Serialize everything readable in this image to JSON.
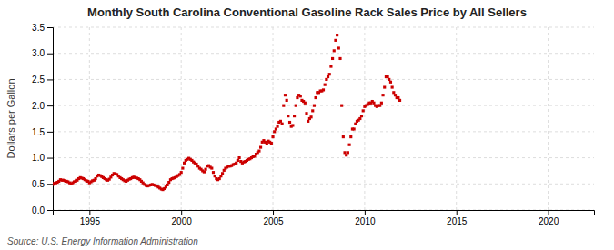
{
  "chart_data": {
    "type": "scatter",
    "title": "Monthly South Carolina Conventional Gasoline Rack Sales Price by All Sellers",
    "y_label": "Dollars per Gallon",
    "annotation": "Source: U.S. Energy Information Administration",
    "color": "#cc0000",
    "marker": "square",
    "grid": true,
    "xlim": [
      1993.0,
      2022.5
    ],
    "ylim": [
      0.0,
      3.5
    ],
    "xticks": [
      1995,
      2000,
      2005,
      2010,
      2015,
      2020
    ],
    "yticks": [
      {
        "value": 0,
        "label": "0.0"
      },
      0.5,
      {
        "value": 1,
        "label": "1.0"
      },
      1.5,
      {
        "value": 2,
        "label": "2.0"
      },
      2.5,
      {
        "value": 3,
        "label": "3.0"
      },
      3.5
    ],
    "x": [
      1993.0,
      1993.083,
      1993.167,
      1993.25,
      1993.333,
      1993.417,
      1993.5,
      1993.583,
      1993.667,
      1993.75,
      1993.833,
      1993.917,
      1994.0,
      1994.083,
      1994.167,
      1994.25,
      1994.333,
      1994.417,
      1994.5,
      1994.583,
      1994.667,
      1994.75,
      1994.833,
      1994.917,
      1995.0,
      1995.083,
      1995.167,
      1995.25,
      1995.333,
      1995.417,
      1995.5,
      1995.583,
      1995.667,
      1995.75,
      1995.833,
      1995.917,
      1996.0,
      1996.083,
      1996.167,
      1996.25,
      1996.333,
      1996.417,
      1996.5,
      1996.583,
      1996.667,
      1996.75,
      1996.833,
      1996.917,
      1997.0,
      1997.083,
      1997.167,
      1997.25,
      1997.333,
      1997.417,
      1997.5,
      1997.583,
      1997.667,
      1997.75,
      1997.833,
      1997.917,
      1998.0,
      1998.083,
      1998.167,
      1998.25,
      1998.333,
      1998.417,
      1998.5,
      1998.583,
      1998.667,
      1998.75,
      1998.833,
      1998.917,
      1999.0,
      1999.083,
      1999.167,
      1999.25,
      1999.333,
      1999.417,
      1999.5,
      1999.583,
      1999.667,
      1999.75,
      1999.833,
      1999.917,
      2000.0,
      2000.083,
      2000.167,
      2000.25,
      2000.333,
      2000.417,
      2000.5,
      2000.583,
      2000.667,
      2000.75,
      2000.833,
      2000.917,
      2001.0,
      2001.083,
      2001.167,
      2001.25,
      2001.333,
      2001.417,
      2001.5,
      2001.583,
      2001.667,
      2001.75,
      2001.833,
      2001.917,
      2002.0,
      2002.083,
      2002.167,
      2002.25,
      2002.333,
      2002.417,
      2002.5,
      2002.583,
      2002.667,
      2002.75,
      2002.833,
      2002.917,
      2003.0,
      2003.083,
      2003.167,
      2003.25,
      2003.333,
      2003.417,
      2003.5,
      2003.583,
      2003.667,
      2003.75,
      2003.833,
      2003.917,
      2004.0,
      2004.083,
      2004.167,
      2004.25,
      2004.333,
      2004.417,
      2004.5,
      2004.583,
      2004.667,
      2004.75,
      2004.833,
      2004.917,
      2005.0,
      2005.083,
      2005.167,
      2005.25,
      2005.333,
      2005.417,
      2005.5,
      2005.583,
      2005.667,
      2005.75,
      2005.833,
      2005.917,
      2006.0,
      2006.083,
      2006.167,
      2006.25,
      2006.333,
      2006.417,
      2006.5,
      2006.583,
      2006.667,
      2006.75,
      2006.833,
      2006.917,
      2007.0,
      2007.083,
      2007.167,
      2007.25,
      2007.333,
      2007.417,
      2007.5,
      2007.583,
      2007.667,
      2007.75,
      2007.833,
      2007.917,
      2008.0,
      2008.083,
      2008.167,
      2008.25,
      2008.333,
      2008.417,
      2008.5,
      2008.583,
      2008.667,
      2008.75,
      2008.833,
      2008.917,
      2009.0,
      2009.083,
      2009.167,
      2009.25,
      2009.333,
      2009.417,
      2009.5,
      2009.583,
      2009.667,
      2009.75,
      2009.833,
      2009.917,
      2010.0,
      2010.083,
      2010.167,
      2010.25,
      2010.333,
      2010.417,
      2010.5,
      2010.583,
      2010.667,
      2010.75,
      2010.833,
      2010.917,
      2011.0,
      2011.083,
      2011.167,
      2011.25,
      2011.333,
      2011.417,
      2011.5,
      2011.583,
      2011.667,
      2011.75,
      2011.833,
      2011.917
    ],
    "values": [
      0.49,
      0.51,
      0.52,
      0.53,
      0.55,
      0.58,
      0.57,
      0.57,
      0.56,
      0.55,
      0.54,
      0.52,
      0.5,
      0.52,
      0.54,
      0.55,
      0.57,
      0.6,
      0.62,
      0.61,
      0.6,
      0.58,
      0.56,
      0.55,
      0.52,
      0.54,
      0.56,
      0.57,
      0.6,
      0.65,
      0.67,
      0.66,
      0.64,
      0.62,
      0.6,
      0.58,
      0.57,
      0.59,
      0.63,
      0.67,
      0.7,
      0.69,
      0.68,
      0.65,
      0.62,
      0.6,
      0.58,
      0.56,
      0.55,
      0.57,
      0.59,
      0.6,
      0.62,
      0.63,
      0.62,
      0.61,
      0.6,
      0.58,
      0.55,
      0.52,
      0.49,
      0.47,
      0.46,
      0.47,
      0.48,
      0.49,
      0.48,
      0.47,
      0.46,
      0.44,
      0.42,
      0.4,
      0.39,
      0.41,
      0.44,
      0.48,
      0.53,
      0.58,
      0.6,
      0.61,
      0.62,
      0.64,
      0.66,
      0.68,
      0.72,
      0.8,
      0.9,
      0.95,
      0.97,
      0.99,
      0.97,
      0.95,
      0.92,
      0.9,
      0.88,
      0.84,
      0.8,
      0.78,
      0.75,
      0.73,
      0.78,
      0.84,
      0.85,
      0.82,
      0.8,
      0.72,
      0.65,
      0.6,
      0.58,
      0.6,
      0.65,
      0.7,
      0.76,
      0.8,
      0.82,
      0.84,
      0.84,
      0.85,
      0.87,
      0.88,
      0.9,
      0.95,
      1.0,
      0.93,
      0.9,
      0.92,
      0.93,
      0.95,
      0.97,
      0.98,
      1.0,
      1.02,
      1.03,
      1.07,
      1.1,
      1.13,
      1.2,
      1.3,
      1.33,
      1.3,
      1.28,
      1.32,
      1.3,
      1.28,
      1.4,
      1.5,
      1.55,
      1.6,
      1.68,
      1.7,
      1.65,
      2.0,
      2.2,
      2.1,
      1.8,
      1.68,
      1.6,
      1.62,
      1.8,
      2.0,
      2.15,
      2.2,
      2.18,
      2.1,
      2.08,
      2.05,
      1.85,
      1.7,
      1.75,
      1.78,
      1.9,
      2.0,
      2.15,
      2.25,
      2.25,
      2.28,
      2.28,
      2.3,
      2.4,
      2.5,
      2.55,
      2.6,
      2.75,
      2.9,
      3.05,
      3.25,
      3.35,
      3.1,
      2.9,
      2.0,
      1.4,
      1.1,
      1.05,
      1.1,
      1.25,
      1.4,
      1.55,
      1.55,
      1.65,
      1.7,
      1.72,
      1.75,
      1.8,
      1.9,
      1.98,
      2.0,
      2.02,
      2.05,
      2.05,
      2.08,
      2.05,
      2.0,
      1.98,
      2.0,
      2.0,
      2.05,
      2.2,
      2.35,
      2.55,
      2.55,
      2.5,
      2.45,
      2.35,
      2.25,
      2.2,
      2.15,
      2.15,
      2.1
    ]
  }
}
